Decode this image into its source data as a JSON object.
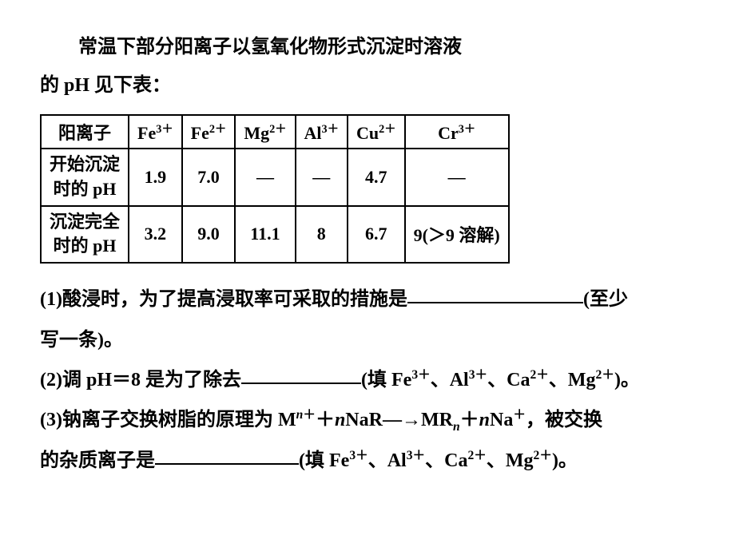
{
  "intro": {
    "line1": "常温下部分阳离子以氢氧化物形式沉淀时溶液",
    "line2": "的 pH 见下表："
  },
  "table": {
    "header": {
      "col0": "阳离子",
      "ions": [
        {
          "base": "Fe",
          "charge": "3＋"
        },
        {
          "base": "Fe",
          "charge": "2＋"
        },
        {
          "base": "Mg",
          "charge": "2＋"
        },
        {
          "base": "Al",
          "charge": "3＋"
        },
        {
          "base": "Cu",
          "charge": "2＋"
        },
        {
          "base": "Cr",
          "charge": "3＋"
        }
      ]
    },
    "row1": {
      "label_l1": "开始沉淀",
      "label_l2": "时的 pH",
      "values": [
        "1.9",
        "7.0",
        "—",
        "—",
        "4.7",
        "—"
      ]
    },
    "row2": {
      "label_l1": "沉淀完全",
      "label_l2": "时的 pH",
      "values": [
        "3.2",
        "9.0",
        "11.1",
        "8",
        "6.7",
        "9(＞9 溶解)"
      ]
    }
  },
  "questions": {
    "q1_a": "(1)酸浸时，为了提高浸取率可采取的措施是",
    "q1_b": "(至少",
    "q1_c": "写一条)。",
    "q2_a": "(2)调 pH＝8 是为了除去",
    "q2_b": "(填 Fe",
    "q2_c": "、Al",
    "q2_d": "、Ca",
    "q2_e": "、Mg",
    "q2_f": ")。",
    "q3_a": "(3)钠离子交换树脂的原理为 M",
    "q3_b": "＋",
    "q3_c": "NaR―→MR",
    "q3_d": "＋",
    "q3_e": "Na",
    "q3_f": "，被交换",
    "q3_g": "的杂质离子是",
    "q3_h": "(填 Fe",
    "q3_i": "、Al",
    "q3_j": "、Ca",
    "q3_k": "、Mg",
    "q3_l": ")。",
    "sup3": "3＋",
    "sup2": "2＋",
    "supplus": "＋",
    "italic_n": "n"
  },
  "style": {
    "body_bg": "#ffffff",
    "text_color": "#000000",
    "border_color": "#000000",
    "font_size_body": 24,
    "font_size_table": 22,
    "font_family": "SimSun"
  }
}
